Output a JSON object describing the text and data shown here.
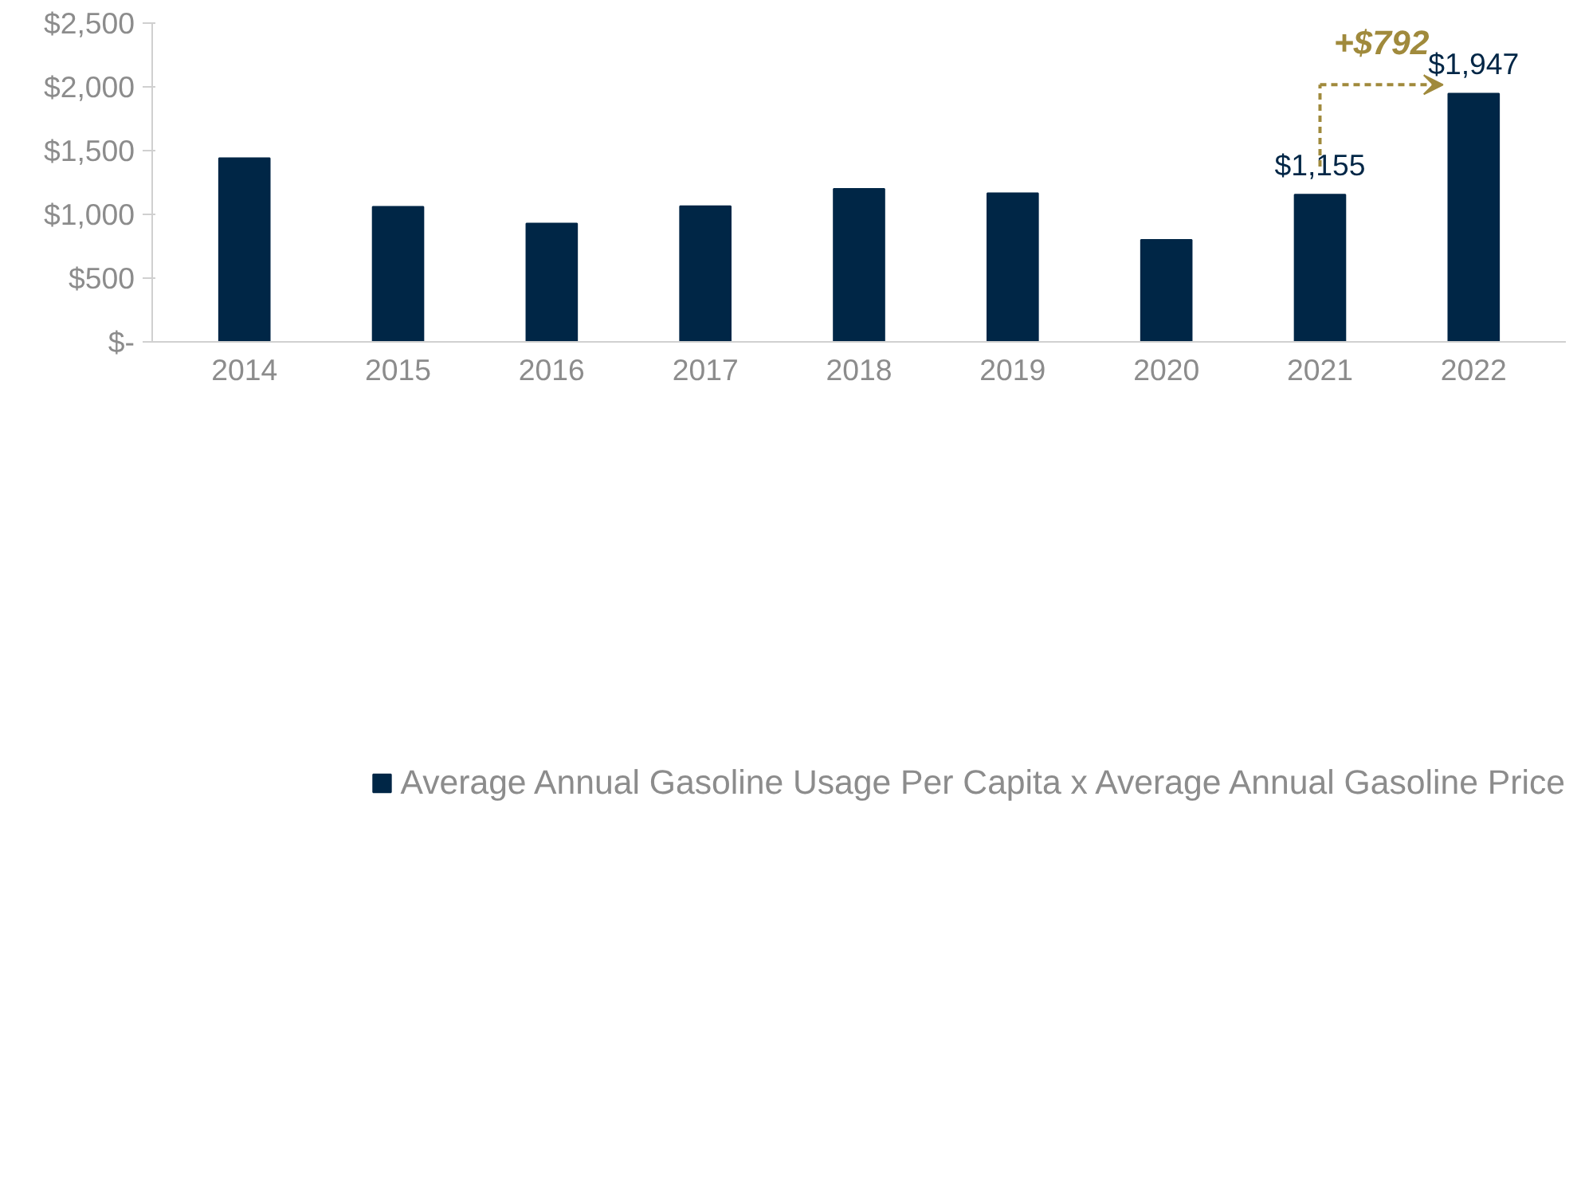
{
  "chart_data": {
    "type": "bar",
    "categories": [
      "2014",
      "2015",
      "2016",
      "2017",
      "2018",
      "2019",
      "2020",
      "2021",
      "2022"
    ],
    "series": [
      {
        "name": "Average Annual Gasoline Usage Per Capita x Average Annual Gasoline Price",
        "color": "#002646",
        "values": [
          1440,
          1060,
          928,
          1064,
          1200,
          1165,
          800,
          1155,
          1947
        ],
        "value_labels": [
          null,
          null,
          null,
          null,
          null,
          null,
          null,
          "$1,155",
          "$1,947"
        ]
      }
    ],
    "ylim": [
      0,
      2500
    ],
    "yticks": [
      {
        "value": 0,
        "label": "$-"
      },
      {
        "value": 500,
        "label": "$500"
      },
      {
        "value": 1000,
        "label": "$1,000"
      },
      {
        "value": 1500,
        "label": "$1,500"
      },
      {
        "value": 2000,
        "label": "$2,000"
      },
      {
        "value": 2500,
        "label": "$2,500"
      }
    ],
    "annotations": [
      {
        "text": "+$792",
        "x": "2022",
        "y": 1947
      }
    ],
    "grid": false,
    "legend": "bottom"
  }
}
